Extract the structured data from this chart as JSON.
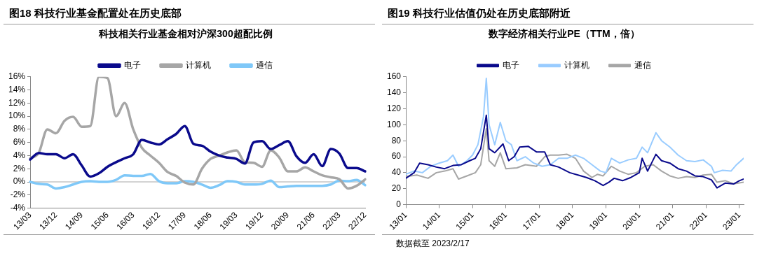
{
  "chart_data": [
    {
      "type": "line",
      "title": "图18 科技行业基金配置处在历史底部",
      "subtitle": "科技相关行业基金相对沪深300超配比例",
      "legend": "top",
      "grid": false,
      "marker": "none",
      "line_style": "solid",
      "categories": [
        "13/03",
        null,
        null,
        "13/12",
        null,
        null,
        "14/09",
        null,
        null,
        "15/06",
        null,
        null,
        "16/03",
        null,
        null,
        "16/12",
        null,
        null,
        "17/09",
        null,
        null,
        "18/06",
        null,
        null,
        "19/03",
        null,
        null,
        "19/12",
        null,
        null,
        "20/09",
        null,
        null,
        "21/06",
        null,
        null,
        "22/03",
        null,
        null,
        "22/12"
      ],
      "ylim": [
        -4,
        16
      ],
      "yticks": [
        {
          "value": -4,
          "label": "-4%"
        },
        {
          "value": -2,
          "label": "-2%"
        },
        {
          "value": 0,
          "label": "0%"
        },
        {
          "value": 2,
          "label": "2%"
        },
        {
          "value": 4,
          "label": "4%"
        },
        {
          "value": 6,
          "label": "6%"
        },
        {
          "value": 8,
          "label": "8%"
        },
        {
          "value": 10,
          "label": "10%"
        },
        {
          "value": 12,
          "label": "12%"
        },
        {
          "value": 14,
          "label": "14%"
        },
        {
          "value": 16,
          "label": "16%"
        }
      ],
      "ref_lines": [
        {
          "axis": "y",
          "value": 0,
          "color": "#a6a6a6"
        }
      ],
      "series": [
        {
          "name": "电子",
          "color": "#0a0a8c",
          "values": [
            3.4,
            4.4,
            4.2,
            4.2,
            3.6,
            4.2,
            2.5,
            0.8,
            1.3,
            2.3,
            3.0,
            3.6,
            4.2,
            6.4,
            6.0,
            5.7,
            6.5,
            7.3,
            8.5,
            5.8,
            5.5,
            4.6,
            4.0,
            3.7,
            3.5,
            2.8,
            6.0,
            6.2,
            5.0,
            5.6,
            6.2,
            3.9,
            2.9,
            4.2,
            2.4,
            5.0,
            4.3,
            2.1,
            2.1,
            1.6
          ]
        },
        {
          "name": "计算机",
          "color": "#a6a6a6",
          "values": [
            3.6,
            4.4,
            8.0,
            7.4,
            9.3,
            9.9,
            8.4,
            8.5,
            16,
            15.8,
            10.0,
            12.0,
            8.0,
            5.2,
            4.0,
            2.9,
            1.5,
            0.9,
            -0.1,
            -0.4,
            2.0,
            3.5,
            4.0,
            4.5,
            4.8,
            3.0,
            2.9,
            2.3,
            4.8,
            3.7,
            1.6,
            1.6,
            2.2,
            1.6,
            1.0,
            0.7,
            0.4,
            -1.0,
            -0.6,
            0.4
          ]
        },
        {
          "name": "通信",
          "color": "#7fc8f8",
          "values": [
            0,
            -0.3,
            -0.4,
            -1.0,
            -0.8,
            -0.4,
            0,
            0.1,
            0,
            0,
            0.3,
            1.0,
            0.9,
            0.9,
            1.2,
            0.1,
            -0.2,
            -0.2,
            0.1,
            0,
            -0.4,
            -0.9,
            -0.5,
            0.1,
            0,
            -0.4,
            -0.4,
            -0.3,
            0.2,
            -0.8,
            -0.7,
            -0.6,
            -0.6,
            -0.6,
            -0.6,
            -0.4,
            0.2,
            0.1,
            0.3,
            -0.5
          ]
        }
      ]
    },
    {
      "type": "line",
      "title": "图19 科技行业估值仍处在历史底部附近",
      "subtitle": "数字经济相关行业PE（TTM，倍）",
      "legend": "top",
      "grid": false,
      "marker": "none",
      "line_style": "solid",
      "annotations": [
        "数据截至 2023/2/17"
      ],
      "xlim": [
        "2013-01-01",
        "2023-02-17"
      ],
      "xticks": [
        {
          "value": "2013-01-01",
          "label": "13/01"
        },
        {
          "value": "2014-01-01",
          "label": "14/01"
        },
        {
          "value": "2015-01-01",
          "label": "15/01"
        },
        {
          "value": "2016-01-01",
          "label": "16/01"
        },
        {
          "value": "2017-01-01",
          "label": "17/01"
        },
        {
          "value": "2018-01-01",
          "label": "18/01"
        },
        {
          "value": "2019-01-01",
          "label": "19/01"
        },
        {
          "value": "2020-01-01",
          "label": "20/01"
        },
        {
          "value": "2021-01-01",
          "label": "21/01"
        },
        {
          "value": "2022-01-01",
          "label": "22/01"
        },
        {
          "value": "2023-01-01",
          "label": "23/01"
        }
      ],
      "ylim": [
        0,
        160
      ],
      "yticks": [
        0,
        20,
        40,
        60,
        80,
        100,
        120,
        140,
        160
      ],
      "series": [
        {
          "name": "电子",
          "color": "#0a0a8c",
          "x": [
            "2013-01-01",
            "2013-04",
            "2013-06",
            "2013-09",
            "2013-12",
            "2014-03",
            "2014-06",
            "2014-09",
            "2014-12",
            "2015-02",
            "2015-04",
            "2015-06",
            "2015-07",
            "2015-09",
            "2015-12",
            "2016-02",
            "2016-04",
            "2016-06",
            "2016-09",
            "2016-12",
            "2017-03",
            "2017-05",
            "2017-08",
            "2017-12",
            "2018-03",
            "2018-06",
            "2018-09",
            "2018-12",
            "2019-02",
            "2019-04",
            "2019-07",
            "2019-10",
            "2020-01",
            "2020-02",
            "2020-04",
            "2020-07",
            "2020-09",
            "2020-12",
            "2021-03",
            "2021-06",
            "2021-09",
            "2021-12",
            "2022-03",
            "2022-05",
            "2022-08",
            "2022-11",
            "2023-01",
            "2023-02-17"
          ],
          "values": [
            33,
            40,
            52,
            50,
            47,
            45,
            49,
            50,
            55,
            58,
            70,
            112,
            70,
            65,
            76,
            55,
            60,
            72,
            73,
            66,
            66,
            50,
            47,
            40,
            37,
            34,
            30,
            24,
            28,
            33,
            30,
            34,
            40,
            58,
            42,
            63,
            55,
            52,
            45,
            42,
            36,
            35,
            31,
            21,
            27,
            26,
            30,
            32
          ]
        },
        {
          "name": "计算机",
          "color": "#99ccff",
          "x": [
            "2013-01-01",
            "2013-04",
            "2013-07",
            "2013-10",
            "2014-01",
            "2014-04",
            "2014-06",
            "2014-08",
            "2014-11",
            "2015-01",
            "2015-03",
            "2015-05",
            "2015-06",
            "2015-07",
            "2015-09",
            "2015-11",
            "2016-01",
            "2016-03",
            "2016-05",
            "2016-08",
            "2016-11",
            "2017-02",
            "2017-05",
            "2017-08",
            "2017-11",
            "2018-02",
            "2018-05",
            "2018-08",
            "2018-11",
            "2019-01",
            "2019-03",
            "2019-06",
            "2019-09",
            "2019-12",
            "2020-02",
            "2020-04",
            "2020-07",
            "2020-09",
            "2020-12",
            "2021-03",
            "2021-06",
            "2021-09",
            "2021-12",
            "2022-03",
            "2022-04",
            "2022-07",
            "2022-10",
            "2022-12",
            "2023-02-17"
          ],
          "values": [
            38,
            42,
            40,
            48,
            52,
            55,
            62,
            48,
            55,
            62,
            75,
            110,
            158,
            100,
            75,
            103,
            80,
            75,
            55,
            60,
            52,
            48,
            50,
            58,
            58,
            62,
            58,
            50,
            42,
            40,
            58,
            52,
            56,
            58,
            72,
            65,
            90,
            80,
            72,
            62,
            55,
            54,
            56,
            48,
            40,
            43,
            42,
            50,
            58
          ]
        },
        {
          "name": "通信",
          "color": "#a6a6a6",
          "x": [
            "2013-01-01",
            "2013-05",
            "2013-09",
            "2013-12",
            "2014-03",
            "2014-06",
            "2014-08",
            "2014-11",
            "2015-02",
            "2015-04",
            "2015-06",
            "2015-07",
            "2015-09",
            "2015-11",
            "2016-01",
            "2016-05",
            "2016-08",
            "2016-12",
            "2017-03",
            "2017-05",
            "2017-08",
            "2017-11",
            "2018-02",
            "2018-05",
            "2018-08",
            "2018-10",
            "2018-12",
            "2019-03",
            "2019-06",
            "2019-09",
            "2019-12",
            "2020-03",
            "2020-06",
            "2020-09",
            "2020-12",
            "2021-03",
            "2021-06",
            "2021-09",
            "2021-12",
            "2022-03",
            "2022-05",
            "2022-08",
            "2022-11",
            "2023-02-17"
          ],
          "values": [
            35,
            37,
            33,
            40,
            42,
            45,
            32,
            36,
            40,
            50,
            95,
            55,
            48,
            65,
            45,
            46,
            50,
            48,
            60,
            62,
            62,
            63,
            58,
            42,
            34,
            38,
            36,
            48,
            42,
            38,
            40,
            48,
            50,
            42,
            36,
            33,
            35,
            34,
            37,
            38,
            28,
            30,
            26,
            28
          ]
        }
      ]
    }
  ]
}
